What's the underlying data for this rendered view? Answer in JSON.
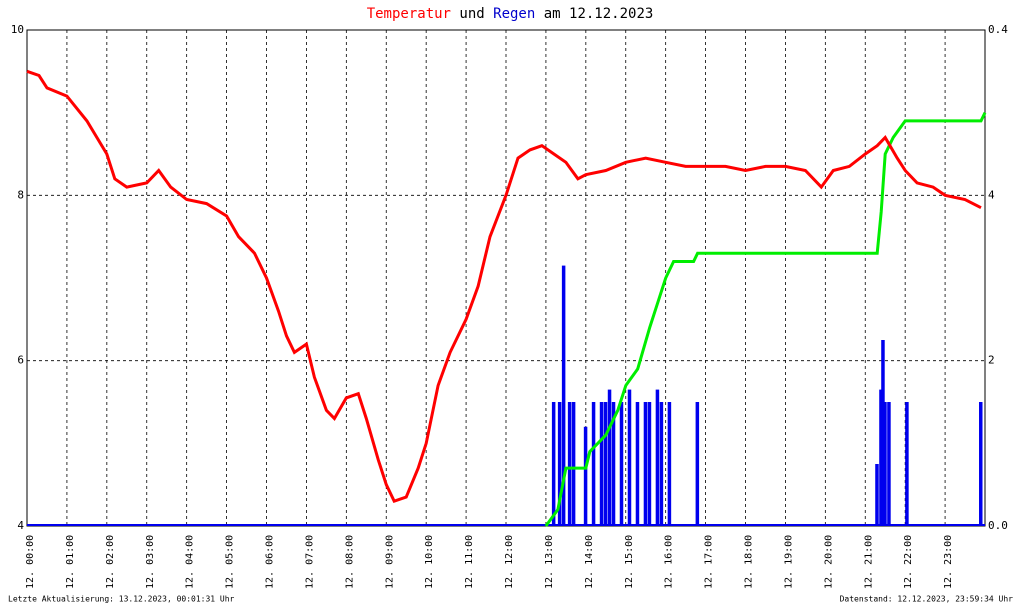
{
  "chart_data": {
    "type": "line",
    "title": [
      "Temperatur",
      " und ",
      "Regen",
      " am 12.12.2023"
    ],
    "title_colors": [
      "#ff0000",
      "#000000",
      "#0000cc",
      "#000000"
    ],
    "xlim": [
      0,
      24
    ],
    "xticks": [
      {
        "value": 0,
        "label": "12. 00:00"
      },
      {
        "value": 1,
        "label": "12. 01:00"
      },
      {
        "value": 2,
        "label": "12. 02:00"
      },
      {
        "value": 3,
        "label": "12. 03:00"
      },
      {
        "value": 4,
        "label": "12. 04:00"
      },
      {
        "value": 5,
        "label": "12. 05:00"
      },
      {
        "value": 6,
        "label": "12. 06:00"
      },
      {
        "value": 7,
        "label": "12. 07:00"
      },
      {
        "value": 8,
        "label": "12. 08:00"
      },
      {
        "value": 9,
        "label": "12. 09:00"
      },
      {
        "value": 10,
        "label": "12. 10:00"
      },
      {
        "value": 11,
        "label": "12. 11:00"
      },
      {
        "value": 12,
        "label": "12. 12:00"
      },
      {
        "value": 13,
        "label": "12. 13:00"
      },
      {
        "value": 14,
        "label": "12. 14:00"
      },
      {
        "value": 15,
        "label": "12. 15:00"
      },
      {
        "value": 16,
        "label": "12. 16:00"
      },
      {
        "value": 17,
        "label": "12. 17:00"
      },
      {
        "value": 18,
        "label": "12. 18:00"
      },
      {
        "value": 19,
        "label": "12. 19:00"
      },
      {
        "value": 20,
        "label": "12. 20:00"
      },
      {
        "value": 21,
        "label": "12. 21:00"
      },
      {
        "value": 22,
        "label": "12. 22:00"
      },
      {
        "value": 23,
        "label": "12. 23:00"
      }
    ],
    "ylim": [
      4,
      10
    ],
    "yticks": [
      4,
      6,
      8,
      10
    ],
    "y2lim": [
      0,
      6
    ],
    "y2ticks": [
      2,
      4
    ],
    "y3lim": [
      0,
      0.4
    ],
    "y3ticks": [
      {
        "value": 0,
        "label": "0.0"
      },
      {
        "value": 0.4,
        "label": "0.4"
      }
    ],
    "grid": true,
    "series": [
      {
        "type": "line",
        "axis": "y",
        "color": "#ff0000",
        "x": [
          0,
          0.3,
          0.5,
          1,
          1.5,
          1.75,
          2,
          2.2,
          2.5,
          3,
          3.3,
          3.6,
          4,
          4.5,
          5,
          5.3,
          5.7,
          6,
          6.3,
          6.5,
          6.7,
          7,
          7.2,
          7.5,
          7.7,
          8,
          8.3,
          8.5,
          8.8,
          9,
          9.2,
          9.5,
          9.8,
          10,
          10.3,
          10.6,
          11,
          11.3,
          11.6,
          12,
          12.3,
          12.6,
          12.9,
          13.2,
          13.5,
          13.8,
          14,
          14.5,
          15,
          15.5,
          16,
          16.5,
          17,
          17.5,
          18,
          18.5,
          19,
          19.5,
          19.9,
          20.2,
          20.6,
          21,
          21.3,
          21.5,
          21.8,
          22,
          22.3,
          22.7,
          23,
          23.5,
          23.9
        ],
        "values": [
          9.5,
          9.45,
          9.3,
          9.2,
          8.9,
          8.7,
          8.5,
          8.2,
          8.1,
          8.15,
          8.3,
          8.1,
          7.95,
          7.9,
          7.75,
          7.5,
          7.3,
          7.0,
          6.6,
          6.3,
          6.1,
          6.2,
          5.8,
          5.4,
          5.3,
          5.55,
          5.6,
          5.3,
          4.8,
          4.5,
          4.3,
          4.35,
          4.7,
          5.0,
          5.7,
          6.1,
          6.5,
          6.9,
          7.5,
          8.0,
          8.45,
          8.55,
          8.6,
          8.5,
          8.4,
          8.2,
          8.25,
          8.3,
          8.4,
          8.45,
          8.4,
          8.35,
          8.35,
          8.35,
          8.3,
          8.35,
          8.35,
          8.3,
          8.1,
          8.3,
          8.35,
          8.5,
          8.6,
          8.7,
          8.45,
          8.3,
          8.15,
          8.1,
          8.0,
          7.95,
          7.85
        ]
      },
      {
        "type": "line",
        "axis": "y2",
        "color": "#00ee00",
        "x": [
          13,
          13.3,
          13.5,
          14,
          14.1,
          14.5,
          14.8,
          15,
          15.3,
          15.6,
          15.8,
          16,
          16.2,
          16.7,
          16.8,
          21.3,
          21.4,
          21.5,
          21.7,
          22,
          23.9,
          24
        ],
        "values": [
          0,
          0.2,
          0.7,
          0.7,
          0.9,
          1.1,
          1.4,
          1.7,
          1.9,
          2.4,
          2.7,
          3.0,
          3.2,
          3.2,
          3.3,
          3.3,
          3.8,
          4.5,
          4.7,
          4.9,
          4.9,
          5.0
        ]
      },
      {
        "type": "bar",
        "axis": "y3",
        "color": "#0000ee",
        "x": [
          13.2,
          13.35,
          13.45,
          13.6,
          13.7,
          14.0,
          14.2,
          14.4,
          14.5,
          14.6,
          14.7,
          14.9,
          15.1,
          15.3,
          15.5,
          15.6,
          15.8,
          15.9,
          16.1,
          16.8,
          21.3,
          21.4,
          21.45,
          21.5,
          21.6,
          22.05,
          23.9
        ],
        "values": [
          0.1,
          0.1,
          0.21,
          0.1,
          0.1,
          0.08,
          0.1,
          0.1,
          0.1,
          0.11,
          0.1,
          0.1,
          0.11,
          0.1,
          0.1,
          0.1,
          0.11,
          0.1,
          0.1,
          0.1,
          0.05,
          0.11,
          0.15,
          0.1,
          0.1,
          0.1,
          0.1
        ]
      }
    ],
    "footer_left": "Letzte Aktualisierung: 13.12.2023, 00:01:31 Uhr",
    "footer_right": "Datenstand: 12.12.2023, 23:59:34 Uhr"
  }
}
